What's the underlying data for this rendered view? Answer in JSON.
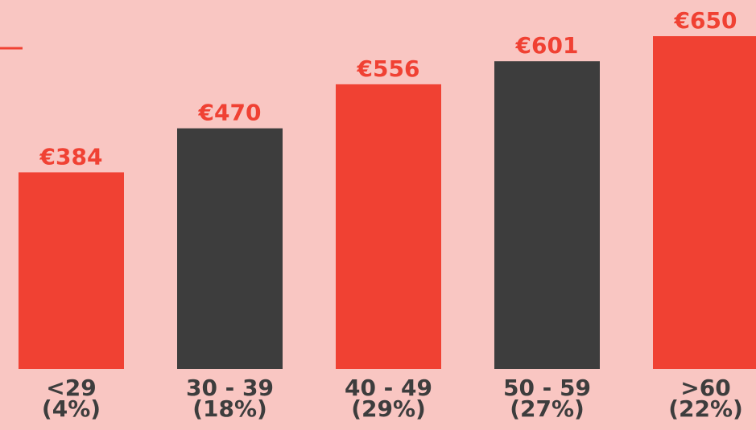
{
  "chart_data": {
    "type": "bar",
    "categories": [
      "<29\n(4%)",
      "30 - 39\n(18%)",
      "40 - 49\n(29%)",
      "50 - 59\n(27%)",
      ">60\n(22%)"
    ],
    "values": [
      384,
      470,
      556,
      601,
      650
    ],
    "value_labels": [
      "€384",
      "€470",
      "€556",
      "€601",
      "€650"
    ],
    "colors": [
      "#f04133",
      "#3d3d3d",
      "#f04133",
      "#3d3d3d",
      "#f04133"
    ],
    "ylim": [
      0,
      650
    ]
  }
}
